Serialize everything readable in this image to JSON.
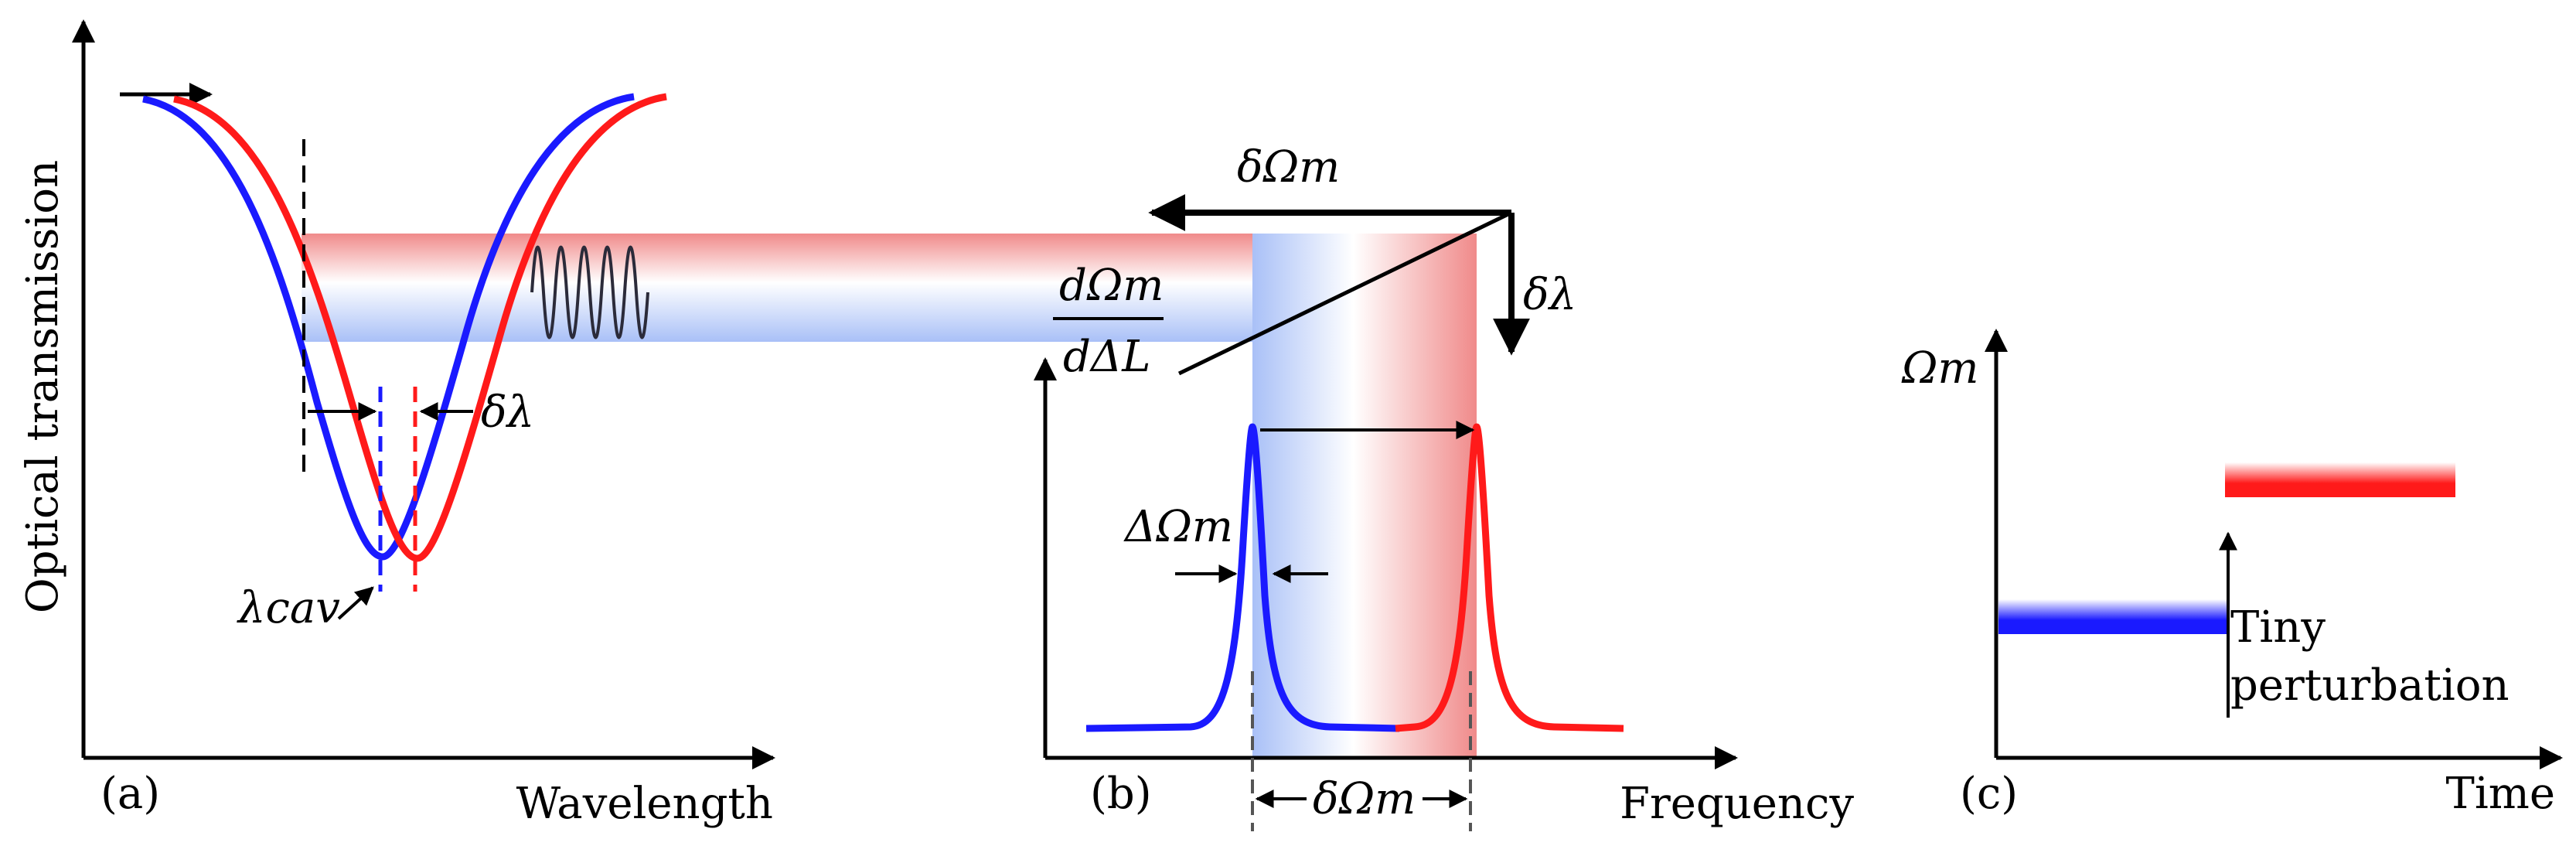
{
  "colors": {
    "blue": "#1a1aff",
    "red": "#ff1a1a",
    "band_blue": "#a9c0f7",
    "band_red": "#f08a8a",
    "axis": "#000000"
  },
  "panel_a": {
    "y_axis_label": "Optical transmission",
    "x_axis_label": "Wavelength",
    "panel_label": "(a)",
    "lambda_cav": "λcav",
    "delta_lambda": "δλ"
  },
  "top": {
    "delta_omega_m": "δΩm",
    "delta_lambda": "δλ",
    "slope_num": "dΩm",
    "slope_den": "dΔL"
  },
  "panel_b": {
    "x_axis_label": "Frequency",
    "panel_label": "(b)",
    "linewidth": "ΔΩm",
    "spacing": "δΩm"
  },
  "panel_c": {
    "y_axis_label": "Ωm",
    "x_axis_label": "Time",
    "panel_label": "(c)",
    "annotation_line1": "Tiny",
    "annotation_line2": "perturbation"
  }
}
